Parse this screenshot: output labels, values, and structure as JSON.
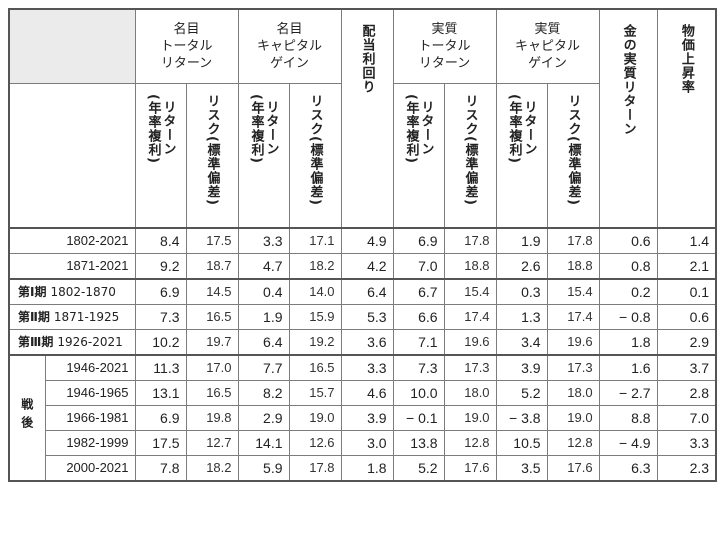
{
  "headers": {
    "nominal_total": "名目\nトータル\nリターン",
    "nominal_capital": "名目\nキャピタル\nゲイン",
    "dividend": "配当利回り",
    "real_total": "実質\nトータル\nリターン",
    "real_capital": "実質\nキャピタル\nゲイン",
    "gold": "金の実質リターン",
    "inflation": "物価上昇率",
    "return_sub": "リターン\n(年率複利)",
    "risk_sub": "リスク(標準偏差)"
  },
  "section_postwar": "戦後",
  "rows_overall": [
    {
      "label": "1802-2021",
      "v": [
        "8.4",
        "17.5",
        "3.3",
        "17.1",
        "4.9",
        "6.9",
        "17.8",
        "1.9",
        "17.8",
        "0.6",
        "1.4"
      ]
    },
    {
      "label": "1871-2021",
      "v": [
        "9.2",
        "18.7",
        "4.7",
        "18.2",
        "4.2",
        "7.0",
        "18.8",
        "2.6",
        "18.8",
        "0.8",
        "2.1"
      ]
    }
  ],
  "rows_periods": [
    {
      "period": "第Ⅰ期",
      "label": "1802-1870",
      "v": [
        "6.9",
        "14.5",
        "0.4",
        "14.0",
        "6.4",
        "6.7",
        "15.4",
        "0.3",
        "15.4",
        "0.2",
        "0.1"
      ]
    },
    {
      "period": "第Ⅱ期",
      "label": "1871-1925",
      "v": [
        "7.3",
        "16.5",
        "1.9",
        "15.9",
        "5.3",
        "6.6",
        "17.4",
        "1.3",
        "17.4",
        "− 0.8",
        "0.6"
      ]
    },
    {
      "period": "第Ⅲ期",
      "label": "1926-2021",
      "v": [
        "10.2",
        "19.7",
        "6.4",
        "19.2",
        "3.6",
        "7.1",
        "19.6",
        "3.4",
        "19.6",
        "1.8",
        "2.9"
      ]
    }
  ],
  "rows_postwar": [
    {
      "label": "1946-2021",
      "v": [
        "11.3",
        "17.0",
        "7.7",
        "16.5",
        "3.3",
        "7.3",
        "17.3",
        "3.9",
        "17.3",
        "1.6",
        "3.7"
      ]
    },
    {
      "label": "1946-1965",
      "v": [
        "13.1",
        "16.5",
        "8.2",
        "15.7",
        "4.6",
        "10.0",
        "18.0",
        "5.2",
        "18.0",
        "− 2.7",
        "2.8"
      ]
    },
    {
      "label": "1966-1981",
      "v": [
        "6.9",
        "19.8",
        "2.9",
        "19.0",
        "3.9",
        "− 0.1",
        "19.0",
        "− 3.8",
        "19.0",
        "8.8",
        "7.0"
      ]
    },
    {
      "label": "1982-1999",
      "v": [
        "17.5",
        "12.7",
        "14.1",
        "12.6",
        "3.0",
        "13.8",
        "12.8",
        "10.5",
        "12.8",
        "− 4.9",
        "3.3"
      ]
    },
    {
      "label": "2000-2021",
      "v": [
        "7.8",
        "18.2",
        "5.9",
        "17.8",
        "1.8",
        "5.2",
        "17.6",
        "3.5",
        "17.6",
        "6.3",
        "2.3"
      ]
    }
  ]
}
